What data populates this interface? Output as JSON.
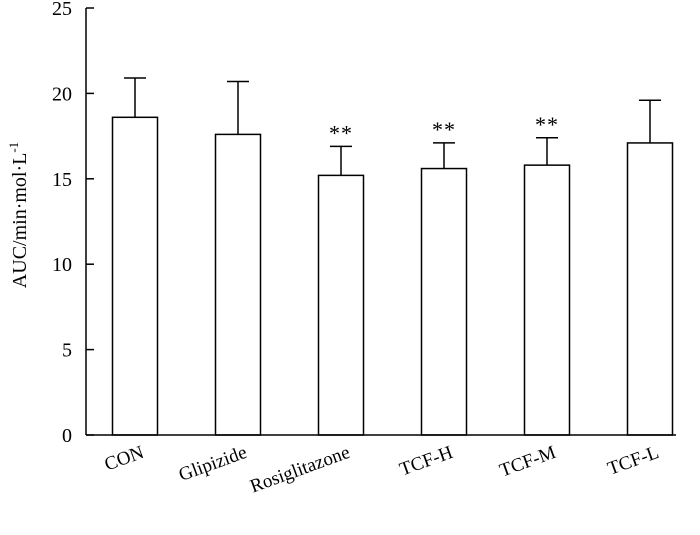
{
  "chart_data": {
    "type": "bar",
    "title": "",
    "xlabel": "",
    "ylabel": {
      "main": "AUC/min·mol·L",
      "superscript": "-1"
    },
    "ylim": [
      0,
      25
    ],
    "yticks": [
      "0",
      "5",
      "10",
      "15",
      "20",
      "25"
    ],
    "categories": [
      "CON",
      "Glipizide",
      "Rosiglitazone",
      "TCF-H",
      "TCF-M",
      "TCF-L"
    ],
    "values": [
      18.6,
      17.6,
      15.2,
      15.6,
      15.8,
      17.1
    ],
    "errors": [
      2.3,
      3.1,
      1.7,
      1.5,
      1.6,
      2.5
    ],
    "significance": [
      "",
      "",
      "**",
      "**",
      "**",
      ""
    ],
    "bar_fill": "#ffffff",
    "stroke_color": "#000000"
  }
}
